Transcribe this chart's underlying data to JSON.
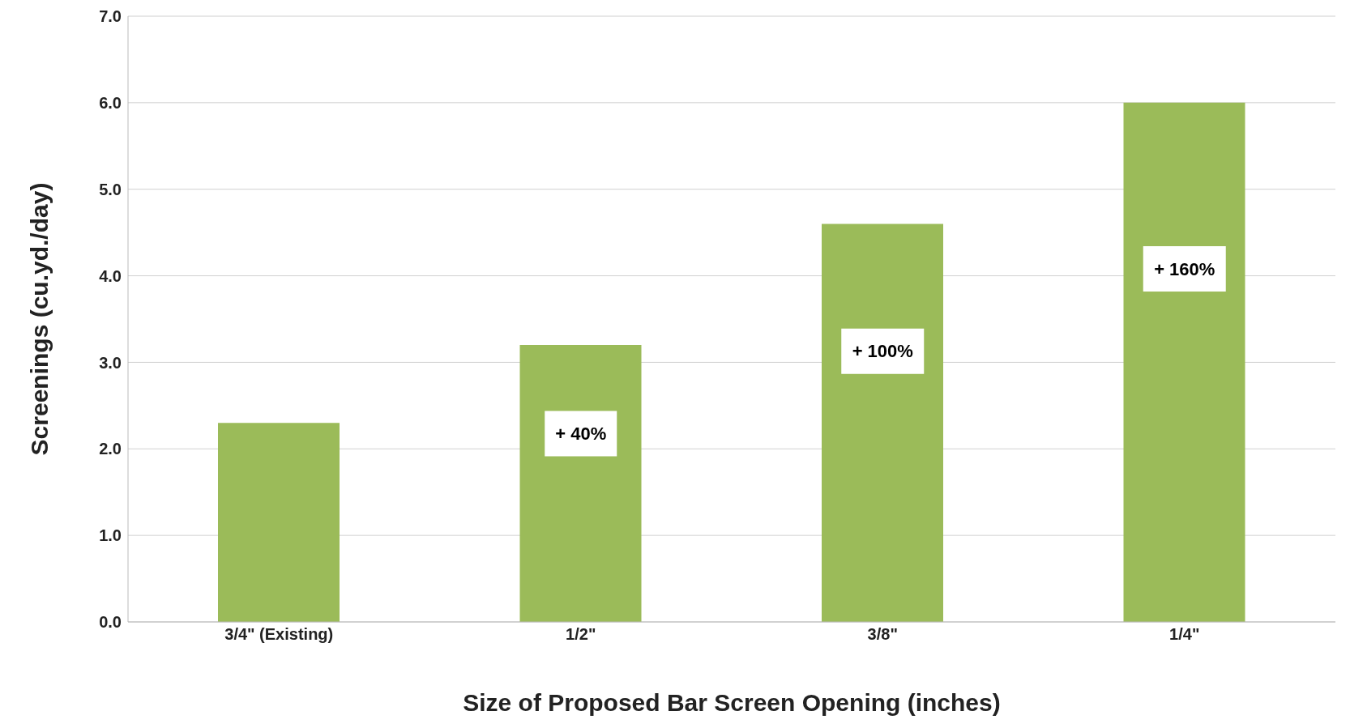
{
  "chart_data": {
    "type": "bar",
    "xlabel": "Size of  Proposed Bar Screen Opening (inches)",
    "ylabel": "Screenings (cu.yd./day)",
    "categories": [
      "3/4\" (Existing)",
      "1/2\"",
      "3/8\"",
      "1/4\""
    ],
    "values": [
      2.3,
      3.2,
      4.6,
      6.0
    ],
    "color": "#9bbb59",
    "ylim": [
      0,
      7
    ],
    "yticks": [
      {
        "value": 0,
        "label": "0.0"
      },
      {
        "value": 1,
        "label": "1.0"
      },
      {
        "value": 2,
        "label": "2.0"
      },
      {
        "value": 3,
        "label": "3.0"
      },
      {
        "value": 4,
        "label": "4.0"
      },
      {
        "value": 5,
        "label": "5.0"
      },
      {
        "value": 6,
        "label": "6.0"
      },
      {
        "value": 7,
        "label": "7.0"
      }
    ],
    "grid": "y",
    "annotations": [
      "+ 40%",
      "+ 100%",
      "+ 160%"
    ]
  }
}
